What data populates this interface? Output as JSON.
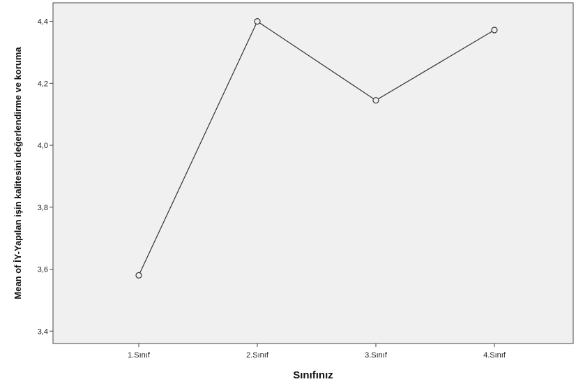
{
  "chart_data": {
    "type": "line",
    "title": "",
    "xlabel": "Sınıfınız",
    "ylabel": "Mean of İY-Yapılan işin kalitesini değerlendirme ve koruma",
    "categories": [
      "1.Sınıf",
      "2.Sınıf",
      "3.Sınıf",
      "4.Sınıf"
    ],
    "series": [
      {
        "values": [
          3.58,
          4.4,
          4.145,
          4.372
        ]
      }
    ],
    "ylim": [
      3.36,
      4.46
    ],
    "yticks": [
      3.4,
      3.6,
      3.8,
      4.0,
      4.2,
      4.4
    ],
    "ytick_labels": [
      "3,4",
      "3,6",
      "3,8",
      "4,0",
      "4,2",
      "4,4"
    ],
    "grid": false,
    "plot_background": "#f0f0f0",
    "line_color": "#333333",
    "marker": "open-circle"
  }
}
